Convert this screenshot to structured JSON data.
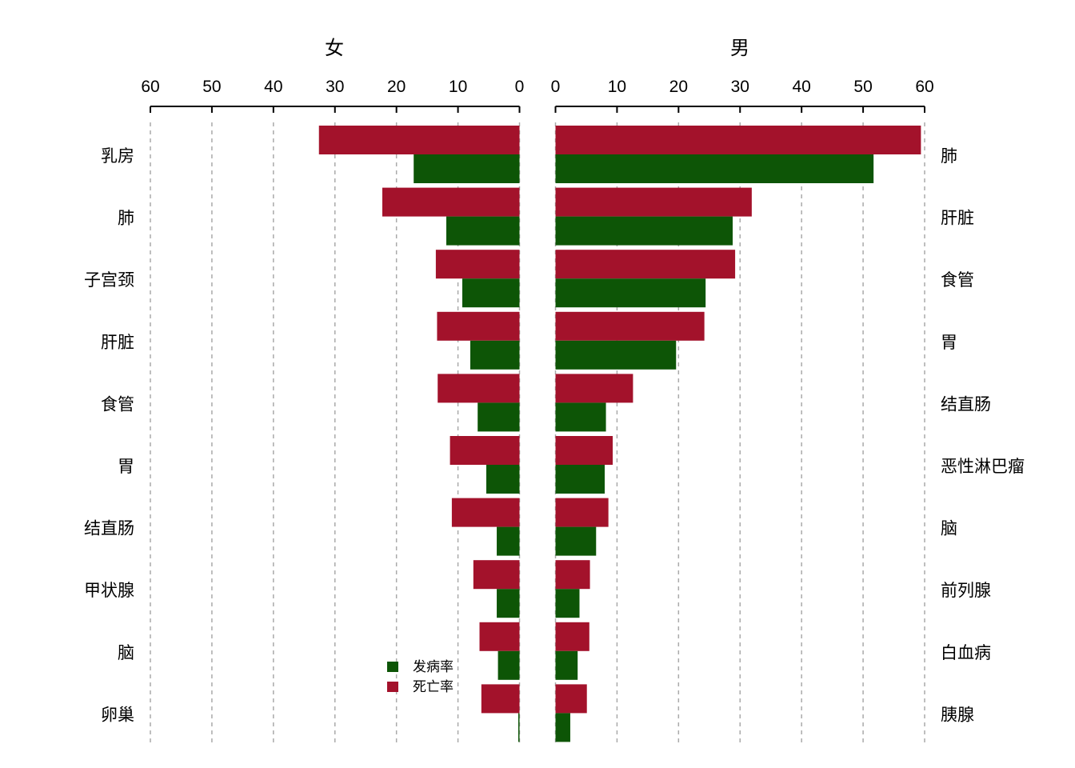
{
  "chart_data": {
    "type": "bar",
    "orientation": "horizontal",
    "xlim": [
      0,
      60
    ],
    "ticks": [
      0,
      10,
      20,
      30,
      40,
      50,
      60
    ],
    "tick_labels": [
      "0",
      "10",
      "20",
      "30",
      "40",
      "50",
      "60"
    ],
    "grid": true,
    "legend_position": "bottom-right of left panel",
    "colors": {
      "发病率": "#0d5506",
      "死亡率": "#a3122b"
    },
    "legend": [
      {
        "name": "发病率",
        "color": "#0d5506"
      },
      {
        "name": "死亡率",
        "color": "#a3122b"
      }
    ],
    "panels": [
      {
        "title": "女",
        "direction": "reversed",
        "categories": [
          "乳房",
          "肺",
          "子宫颈",
          "肝脏",
          "食管",
          "胃",
          "结直肠",
          "甲状腺",
          "脑",
          "卵巢"
        ],
        "series": [
          {
            "name": "死亡率",
            "values": [
              32.6,
              22.3,
              13.6,
              13.4,
              13.3,
              11.3,
              11.0,
              7.5,
              6.5,
              6.2
            ]
          },
          {
            "name": "发病率",
            "values": [
              17.2,
              11.9,
              9.3,
              8.0,
              6.8,
              5.4,
              3.7,
              3.7,
              3.5,
              0.2
            ]
          }
        ]
      },
      {
        "title": "男",
        "direction": "normal",
        "categories": [
          "肺",
          "肝脏",
          "食管",
          "胃",
          "结直肠",
          "恶性淋巴瘤",
          "脑",
          "前列腺",
          "白血病",
          "胰腺"
        ],
        "series": [
          {
            "name": "死亡率",
            "values": [
              59.4,
              31.9,
              29.2,
              24.2,
              12.6,
              9.3,
              8.6,
              5.6,
              5.5,
              5.1
            ]
          },
          {
            "name": "发病率",
            "values": [
              51.7,
              28.8,
              24.4,
              19.6,
              8.2,
              8.0,
              6.6,
              3.9,
              3.6,
              2.4
            ]
          }
        ]
      }
    ]
  }
}
